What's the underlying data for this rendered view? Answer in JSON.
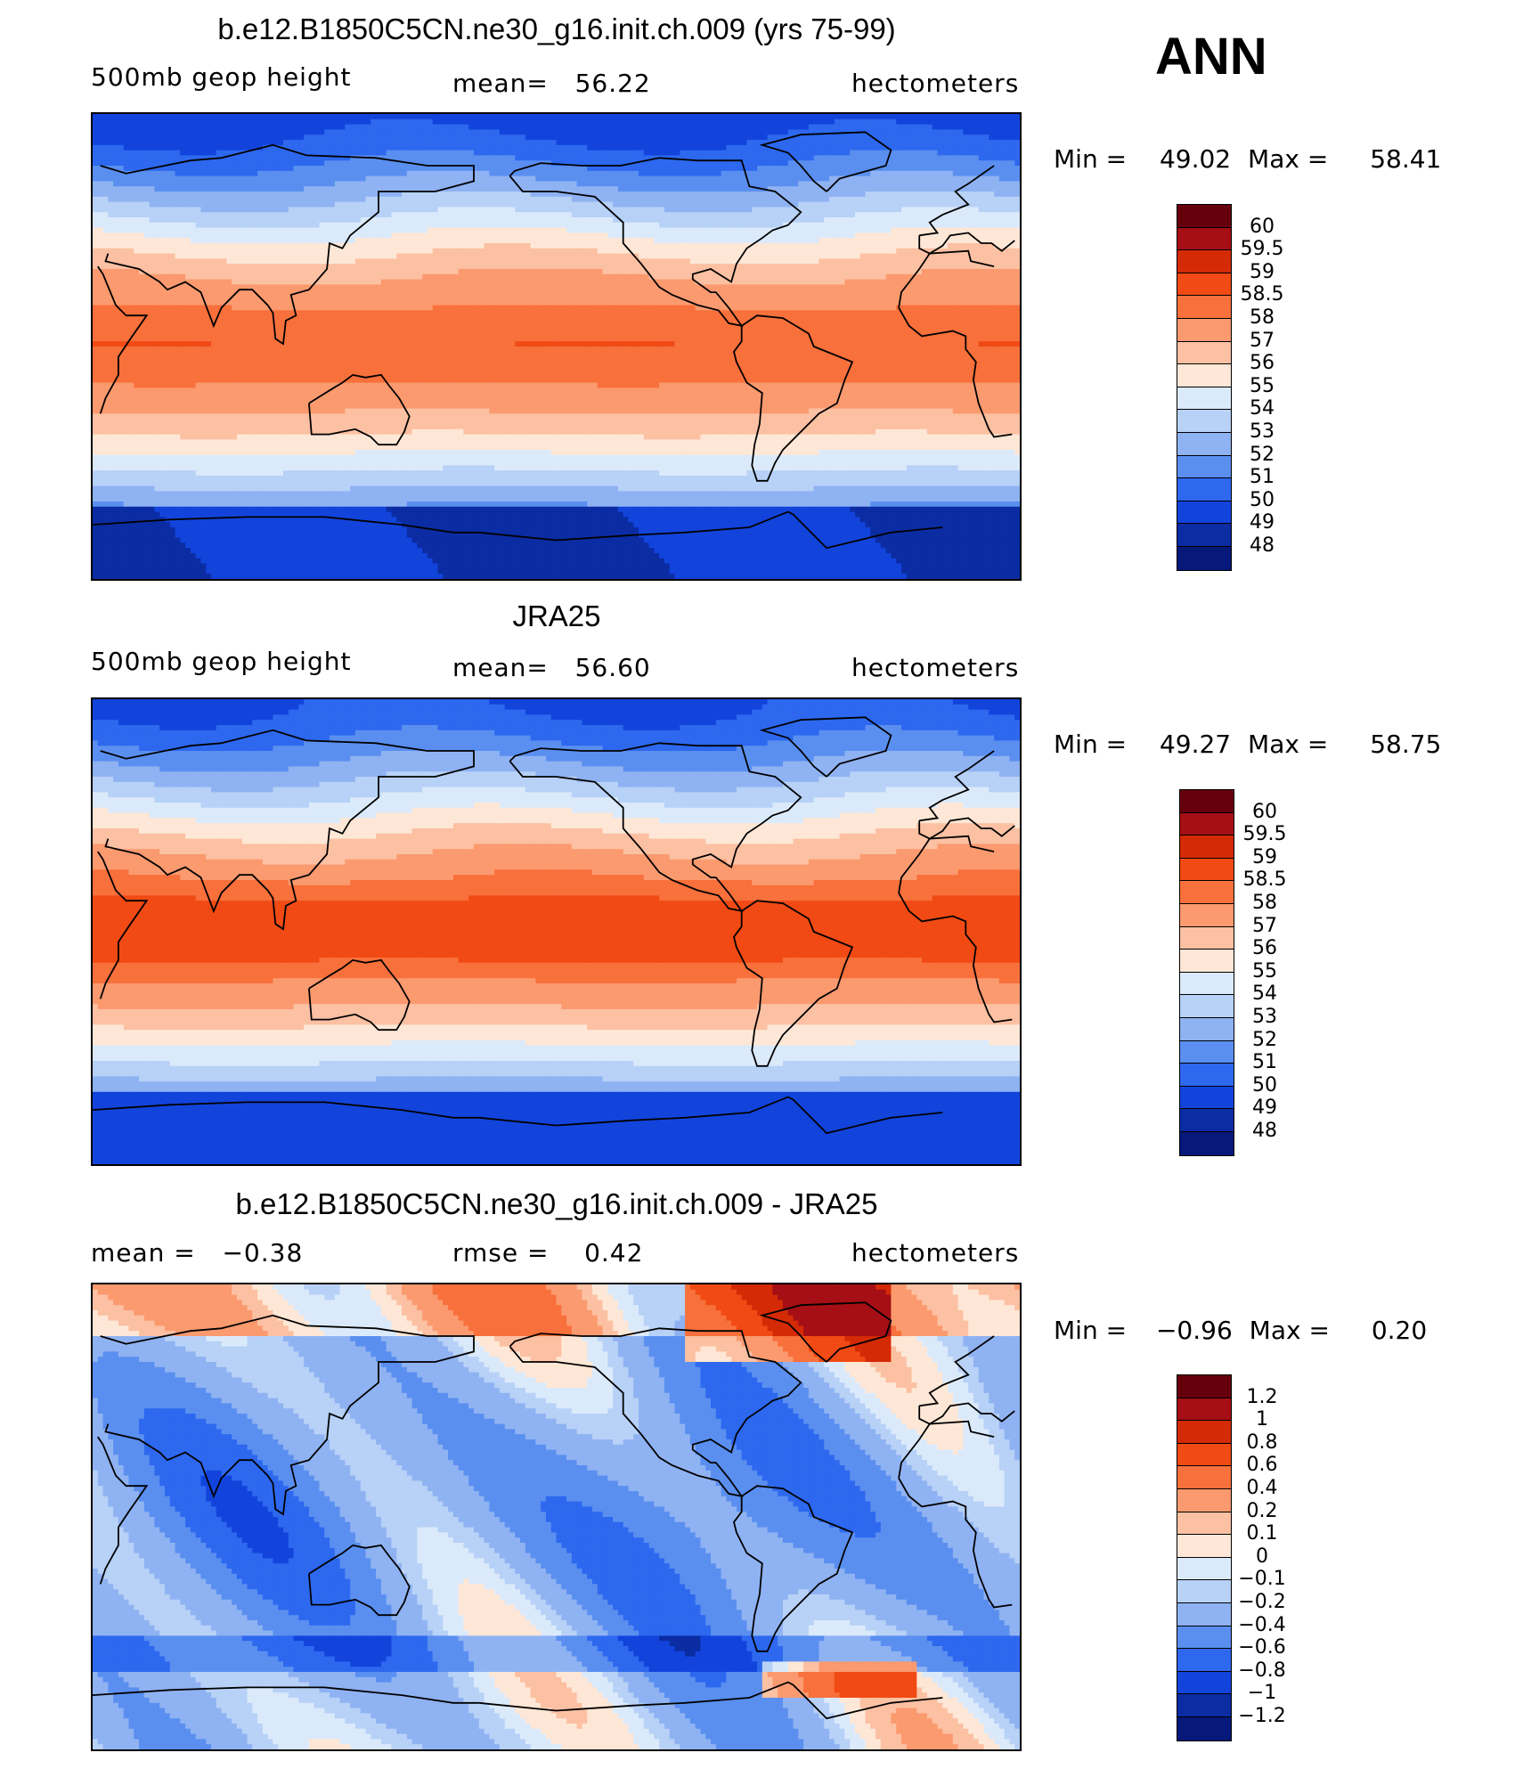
{
  "season": "ANN",
  "panels": [
    {
      "title": "b.e12.B1850C5CN.ne30_g16.init.ch.009 (yrs 75-99)",
      "variable": "500mb geop height",
      "stat": "mean=   56.22",
      "units": "hectometers",
      "min_label": "Min =",
      "min_value": "49.02",
      "max_label": "Max =",
      "max_value": "58.41",
      "colorbar": {
        "labels": [
          "60",
          "59.5",
          "59",
          "58.5",
          "58",
          "57",
          "56",
          "55",
          "54",
          "53",
          "52",
          "51",
          "50",
          "49",
          "48"
        ],
        "colors": [
          "#67000d",
          "#a50f15",
          "#d42a06",
          "#f14a14",
          "#f8703b",
          "#fb9a6f",
          "#fcc0a2",
          "#fee7d6",
          "#dbeafb",
          "#b7d1f7",
          "#8fb2f2",
          "#5a8ff0",
          "#2d68ef",
          "#1244dc",
          "#0b2ca3",
          "#06187a"
        ]
      },
      "field": "z500"
    },
    {
      "title": "JRA25",
      "variable": "500mb geop height",
      "stat": "mean=   56.60",
      "units": "hectometers",
      "min_label": "Min =",
      "min_value": "49.27",
      "max_label": "Max =",
      "max_value": "58.75",
      "colorbar": {
        "labels": [
          "60",
          "59.5",
          "59",
          "58.5",
          "58",
          "57",
          "56",
          "55",
          "54",
          "53",
          "52",
          "51",
          "50",
          "49",
          "48"
        ],
        "colors": [
          "#67000d",
          "#a50f15",
          "#d42a06",
          "#f14a14",
          "#f8703b",
          "#fb9a6f",
          "#fcc0a2",
          "#fee7d6",
          "#dbeafb",
          "#b7d1f7",
          "#8fb2f2",
          "#5a8ff0",
          "#2d68ef",
          "#1244dc",
          "#0b2ca3",
          "#06187a"
        ]
      },
      "field": "z500obs"
    },
    {
      "title": "b.e12.B1850C5CN.ne30_g16.init.ch.009 - JRA25",
      "variable": "mean =   −0.38",
      "stat": "rmse =    0.42",
      "units": "hectometers",
      "min_label": "Min =",
      "min_value": "−0.96",
      "max_label": "Max =",
      "max_value": "0.20",
      "colorbar": {
        "labels": [
          "1.2",
          "1",
          "0.8",
          "0.6",
          "0.4",
          "0.2",
          "0.1",
          "0",
          "−0.1",
          "−0.2",
          "−0.4",
          "−0.6",
          "−0.8",
          "−1",
          "−1.2"
        ],
        "colors": [
          "#67000d",
          "#a50f15",
          "#d42a06",
          "#f14a14",
          "#f8703b",
          "#fb9a6f",
          "#fcc0a2",
          "#fee7d6",
          "#dbeafb",
          "#b7d1f7",
          "#8fb2f2",
          "#5a8ff0",
          "#2d68ef",
          "#1244dc",
          "#0b2ca3",
          "#06187a"
        ]
      },
      "field": "diff"
    }
  ]
}
